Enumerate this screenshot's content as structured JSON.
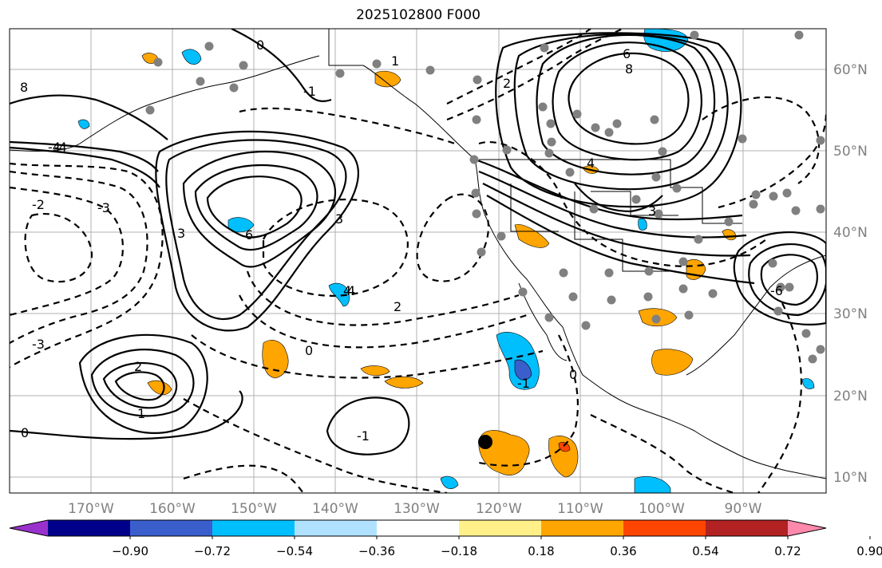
{
  "title": "2025102800 F000",
  "lon_labels": [
    "170°W",
    "160°W",
    "150°W",
    "140°W",
    "130°W",
    "120°W",
    "110°W",
    "100°W",
    "90°W"
  ],
  "lat_labels": [
    "60°N",
    "50°N",
    "40°N",
    "30°N",
    "20°N",
    "10°N"
  ],
  "colorbar": {
    "ticks": [
      "−0.90",
      "−0.72",
      "−0.54",
      "−0.36",
      "−0.18",
      "0.18",
      "0.36",
      "0.54",
      "0.72",
      "0.90"
    ],
    "colors": [
      "#9932cc",
      "#00008b",
      "#3a5fcd",
      "#00bfff",
      "#b0e2ff",
      "#ffffff",
      "#fff08a",
      "#ffa500",
      "#ff4500",
      "#b22222",
      "#ff89ac"
    ]
  },
  "contour_labels": [
    "0",
    "1",
    "-1",
    "2",
    "-2",
    "3",
    "-3",
    "4",
    "-4",
    "6",
    "8",
    "-6",
    "3",
    "4",
    "2",
    "0",
    "0",
    "1",
    "-1",
    "-1",
    "4",
    "0",
    "-3",
    "3",
    "2",
    "-4",
    "6",
    "8"
  ],
  "colors": {
    "fill_pos": "#ffa500",
    "fill_neg": "#00bfff",
    "fill_neg_dark": "#3a5fcd",
    "fill_red": "#ff4500",
    "station": "#808080"
  }
}
